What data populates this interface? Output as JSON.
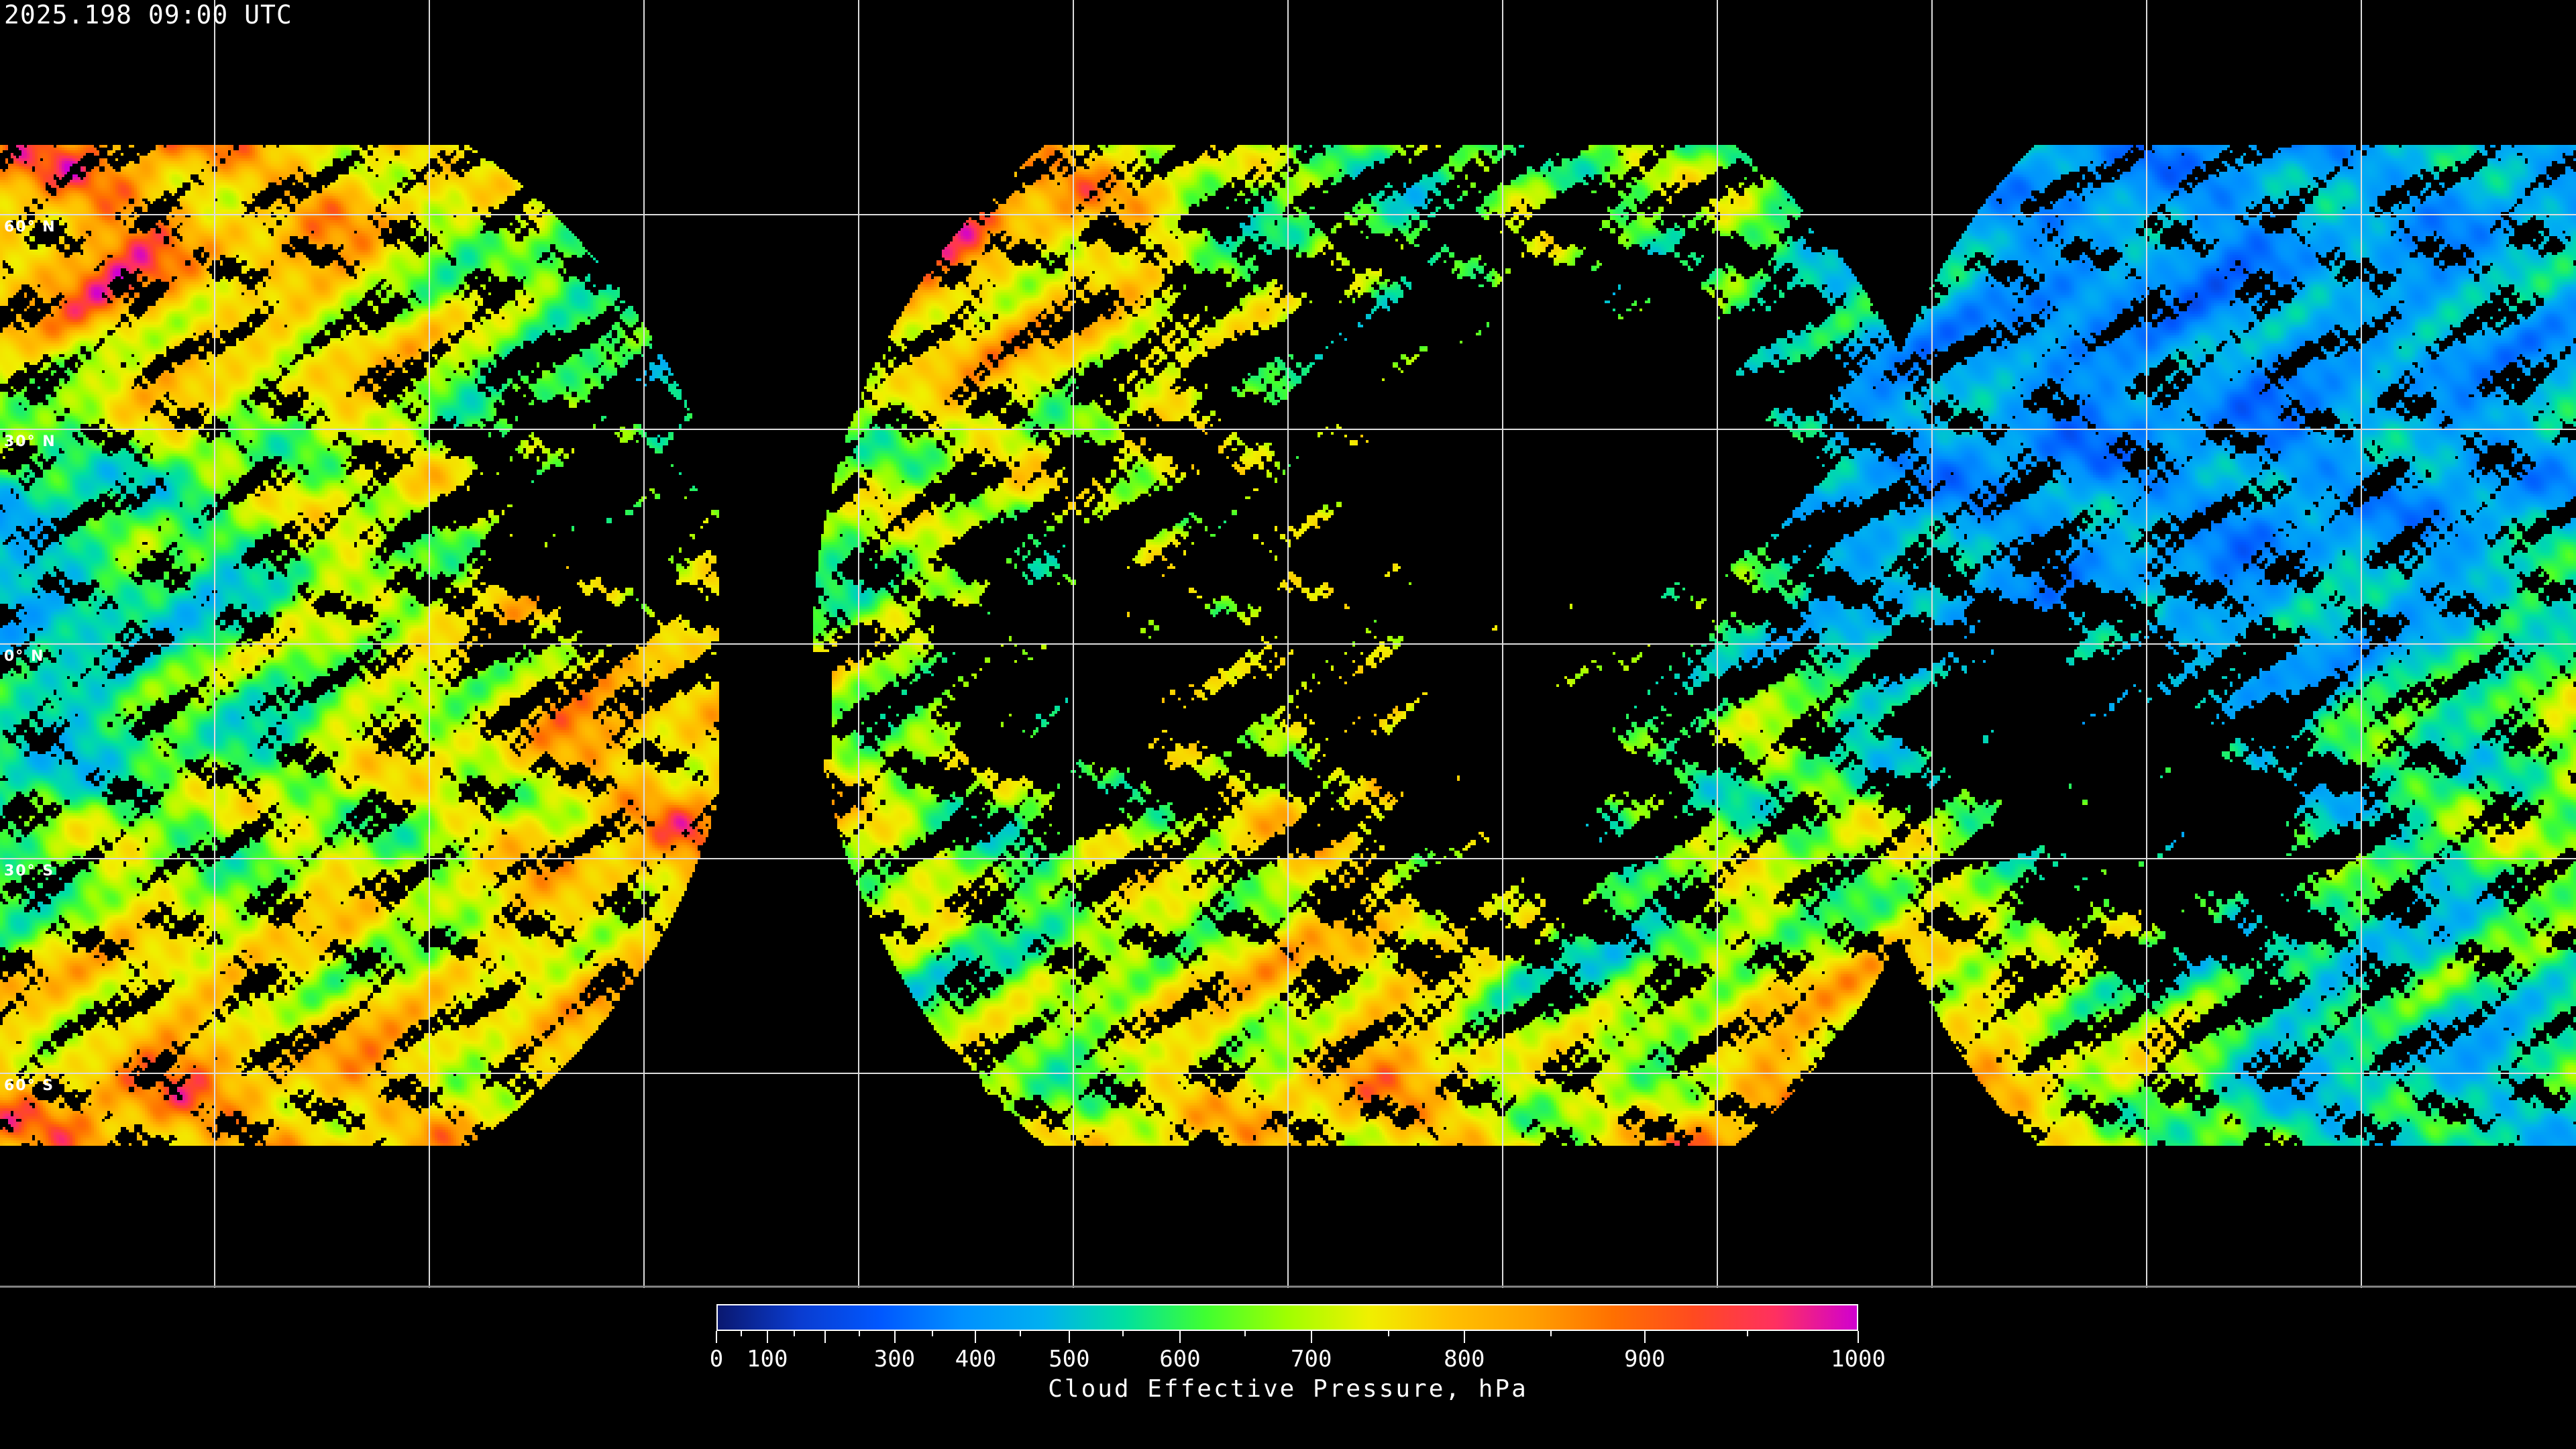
{
  "header": {
    "timestamp": "2025.198 09:00 UTC"
  },
  "map": {
    "lat_labels": [
      "60° N",
      "30° N",
      "0° N",
      "30° S",
      "60° S"
    ],
    "graticule_spacing_deg": 30,
    "projection": "equirectangular",
    "no_data_color": "#000000",
    "graticule_color": "#ffffff",
    "coastline_color": "#ffffff"
  },
  "colorbar": {
    "title": "Cloud Effective Pressure, hPa",
    "min": 0,
    "max": 1000,
    "tick_labels": [
      "0",
      "100",
      "300",
      "400",
      "500",
      "600",
      "700",
      "800",
      "900",
      "1000"
    ],
    "colors": [
      "#0a1870",
      "#0a3cd0",
      "#0058ff",
      "#0090ff",
      "#00b0f0",
      "#00e0a0",
      "#40ff30",
      "#a0ff00",
      "#f0f000",
      "#ffc000",
      "#ffa000",
      "#ff7000",
      "#ff4a20",
      "#ff3060",
      "#d000d0"
    ]
  }
}
